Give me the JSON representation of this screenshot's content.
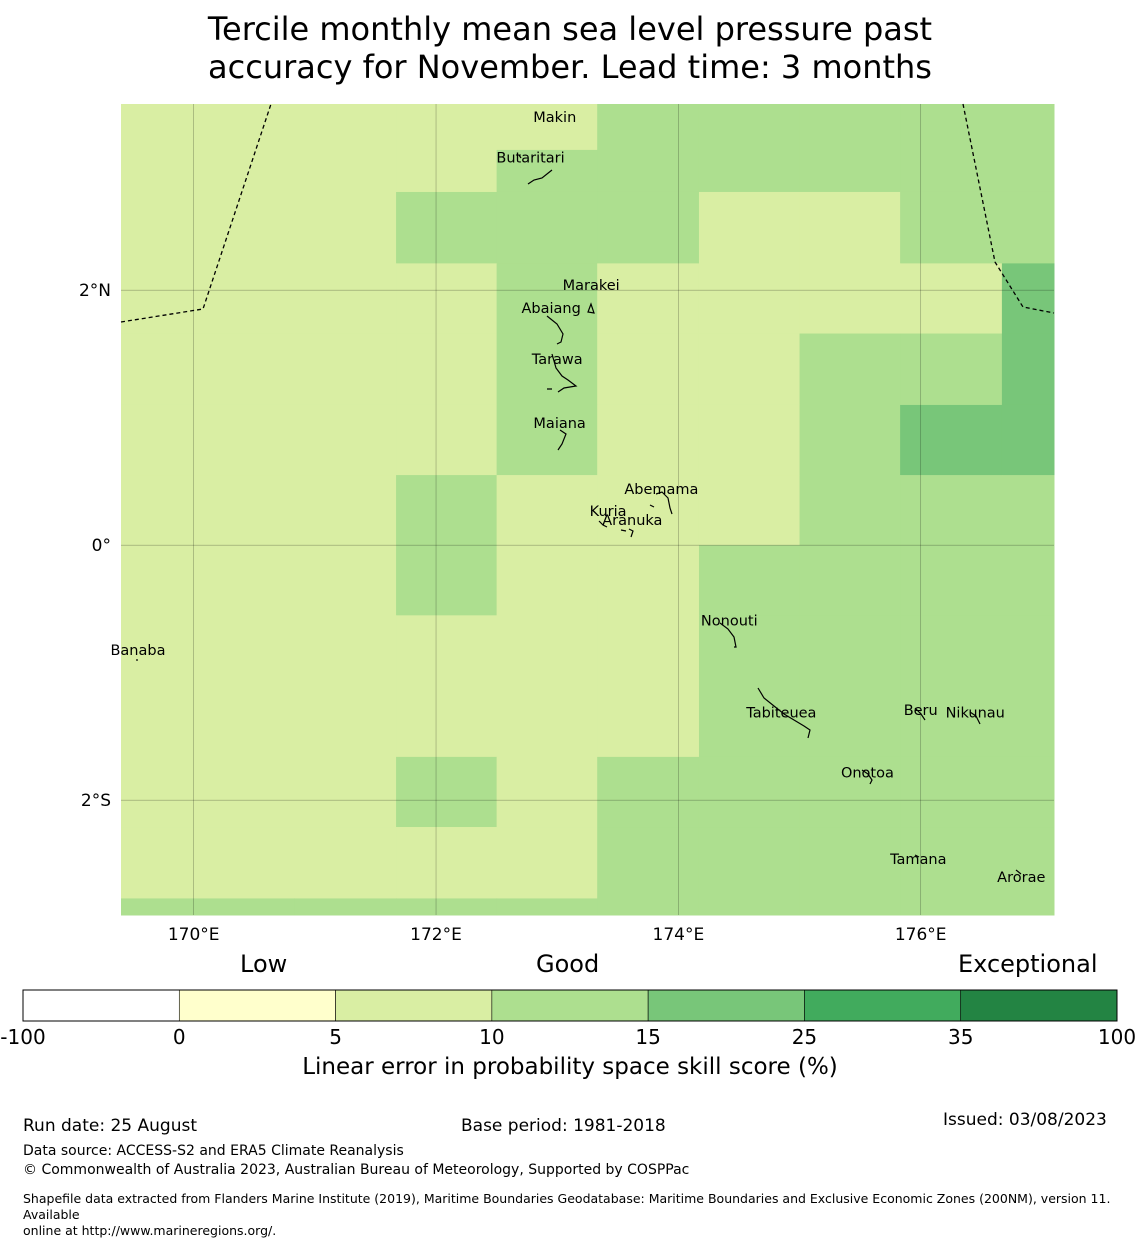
{
  "title": {
    "line1": "Tercile monthly mean sea level pressure past",
    "line2": "accuracy for November. Lead time: 3 months"
  },
  "map": {
    "lon_range": [
      169.4,
      177.1
    ],
    "lat_range": [
      -2.9,
      3.46
    ],
    "lon_ticks": [
      {
        "value": 170,
        "label": "170°E"
      },
      {
        "value": 172,
        "label": "172°E"
      },
      {
        "value": 174,
        "label": "174°E"
      },
      {
        "value": 176,
        "label": "176°E"
      }
    ],
    "lat_ticks": [
      {
        "value": 2,
        "label": "2°N"
      },
      {
        "value": 0,
        "label": "0°"
      },
      {
        "value": -2,
        "label": "2°S"
      }
    ],
    "grid_on": true,
    "colors": {
      "c5_10": "#d9eea3",
      "c10_15": "#addf8f",
      "c15_25": "#78c679"
    },
    "places": [
      {
        "name": "Makin",
        "lon": 172.98,
        "lat": 3.32
      },
      {
        "name": "Butaritari",
        "lon": 172.78,
        "lat": 3.0
      },
      {
        "name": "Marakei",
        "lon": 173.28,
        "lat": 2.0
      },
      {
        "name": "Abaiang",
        "lon": 172.95,
        "lat": 1.82
      },
      {
        "name": "Tarawa",
        "lon": 173.0,
        "lat": 1.42
      },
      {
        "name": "Maiana",
        "lon": 173.02,
        "lat": 0.92
      },
      {
        "name": "Abemama",
        "lon": 173.86,
        "lat": 0.4
      },
      {
        "name": "Kuria",
        "lon": 173.42,
        "lat": 0.23
      },
      {
        "name": "Aranuka",
        "lon": 173.62,
        "lat": 0.16
      },
      {
        "name": "Banaba",
        "lon": 169.54,
        "lat": -0.86
      },
      {
        "name": "Nonouti",
        "lon": 174.42,
        "lat": -0.63
      },
      {
        "name": "Tabiteuea",
        "lon": 174.85,
        "lat": -1.35
      },
      {
        "name": "Beru",
        "lon": 176.0,
        "lat": -1.33
      },
      {
        "name": "Nikunau",
        "lon": 176.45,
        "lat": -1.35
      },
      {
        "name": "Onotoa",
        "lon": 175.56,
        "lat": -1.82
      },
      {
        "name": "Tamana",
        "lon": 175.98,
        "lat": -2.5
      },
      {
        "name": "Arorae",
        "lon": 176.83,
        "lat": -2.64
      }
    ]
  },
  "chart_data": {
    "type": "heatmap",
    "title": "Tercile monthly mean sea level pressure past accuracy for November. Lead time: 3 months",
    "colorbar_label": "Linear error in probability space skill score (%)",
    "categories": [
      "Low",
      "Good",
      "Exceptional"
    ],
    "bins": [
      -100,
      0,
      5,
      10,
      15,
      25,
      35,
      100
    ],
    "bin_colors": [
      "#ffffff",
      "#ffffcc",
      "#d9eea3",
      "#addf8f",
      "#78c679",
      "#41ab5d",
      "#238443"
    ],
    "grid_lon_edges": [
      169.4,
      170.0,
      170.83,
      171.67,
      172.5,
      173.33,
      174.17,
      175.0,
      175.83,
      176.67,
      177.1
    ],
    "grid_lat_edges": [
      3.46,
      3.1,
      2.77,
      2.21,
      1.66,
      1.1,
      0.55,
      0.0,
      -0.55,
      -1.1,
      -1.66,
      -2.21,
      -2.77,
      -2.9
    ],
    "skill_class_grid": [
      [
        "5-10",
        "5-10",
        "5-10",
        "5-10",
        "5-10",
        "10-15",
        "10-15",
        "10-15",
        "10-15",
        "10-15"
      ],
      [
        "5-10",
        "5-10",
        "5-10",
        "5-10",
        "10-15",
        "10-15",
        "10-15",
        "10-15",
        "10-15",
        "10-15"
      ],
      [
        "5-10",
        "5-10",
        "5-10",
        "10-15",
        "10-15",
        "10-15",
        "5-10",
        "5-10",
        "10-15",
        "10-15"
      ],
      [
        "5-10",
        "5-10",
        "5-10",
        "5-10",
        "10-15",
        "5-10",
        "5-10",
        "5-10",
        "5-10",
        "15-25"
      ],
      [
        "5-10",
        "5-10",
        "5-10",
        "5-10",
        "10-15",
        "5-10",
        "5-10",
        "10-15",
        "10-15",
        "15-25"
      ],
      [
        "5-10",
        "5-10",
        "5-10",
        "5-10",
        "10-15",
        "5-10",
        "5-10",
        "10-15",
        "15-25",
        "15-25"
      ],
      [
        "5-10",
        "5-10",
        "5-10",
        "10-15",
        "5-10",
        "5-10",
        "5-10",
        "10-15",
        "10-15",
        "10-15"
      ],
      [
        "5-10",
        "5-10",
        "5-10",
        "10-15",
        "5-10",
        "5-10",
        "10-15",
        "10-15",
        "10-15",
        "10-15"
      ],
      [
        "5-10",
        "5-10",
        "5-10",
        "5-10",
        "5-10",
        "5-10",
        "10-15",
        "10-15",
        "10-15",
        "10-15"
      ],
      [
        "5-10",
        "5-10",
        "5-10",
        "5-10",
        "5-10",
        "5-10",
        "10-15",
        "10-15",
        "10-15",
        "10-15"
      ],
      [
        "5-10",
        "5-10",
        "5-10",
        "10-15",
        "5-10",
        "10-15",
        "10-15",
        "10-15",
        "10-15",
        "10-15"
      ],
      [
        "5-10",
        "5-10",
        "5-10",
        "5-10",
        "5-10",
        "10-15",
        "10-15",
        "10-15",
        "10-15",
        "10-15"
      ],
      [
        "10-15",
        "10-15",
        "10-15",
        "10-15",
        "10-15",
        "10-15",
        "10-15",
        "10-15",
        "10-15",
        "10-15"
      ]
    ]
  },
  "colorbar": {
    "ticks": [
      "-100",
      "0",
      "5",
      "10",
      "15",
      "25",
      "35",
      "100"
    ],
    "labels": {
      "low": "Low",
      "good": "Good",
      "exceptional": "Exceptional"
    },
    "title": "Linear error in probability space skill score (%)"
  },
  "footer": {
    "run_date": "Run date: 25 August",
    "base_period": "Base period: 1981-2018",
    "issued": "Issued: 03/08/2023",
    "data_source": "Data source: ACCESS-S2 and ERA5 Climate Reanalysis",
    "copyright": "© Commonwealth of Australia 2023, Australian Bureau of Meteorology, Supported by COSPPac",
    "shapefile_line1": "Shapefile data extracted from Flanders Marine Institute (2019), Maritime Boundaries Geodatabase: Maritime Boundaries and Exclusive Economic Zones (200NM), version 11. Available",
    "shapefile_line2": "online at http://www.marineregions.org/."
  }
}
